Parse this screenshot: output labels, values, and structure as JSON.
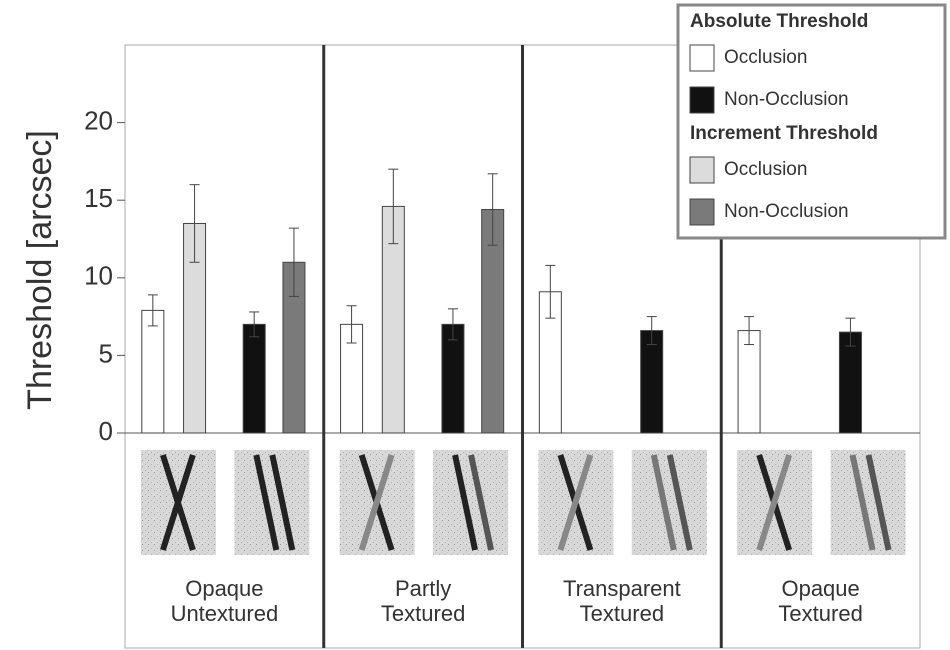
{
  "chart_data": {
    "type": "bar",
    "y_label": "Threshold [arcsec]",
    "categories": [
      [
        "Opaque",
        "Untextured"
      ],
      [
        "Partly",
        "Textured"
      ],
      [
        "Transparent",
        "Textured"
      ],
      [
        "Opaque",
        "Textured"
      ]
    ],
    "groups": [
      {
        "name": "Absolute Threshold",
        "series": [
          {
            "name": "Occlusion",
            "color": "#ffffff",
            "values": [
              7.9,
              7.0,
              9.1,
              6.6
            ],
            "errors": [
              1.0,
              1.2,
              1.7,
              0.9
            ]
          },
          {
            "name": "Non-Occlusion",
            "color": "#111111",
            "values": [
              7.0,
              7.0,
              6.6,
              6.5
            ],
            "errors": [
              0.8,
              1.0,
              0.9,
              0.9
            ]
          }
        ]
      },
      {
        "name": "Increment Threshold",
        "series": [
          {
            "name": "Occlusion",
            "color": "#dcdcdc",
            "values": [
              13.5,
              14.6,
              null,
              null
            ],
            "errors": [
              2.5,
              2.4,
              null,
              null
            ]
          },
          {
            "name": "Non-Occlusion",
            "color": "#7a7a7a",
            "values": [
              11.0,
              14.4,
              null,
              null
            ],
            "errors": [
              2.2,
              2.3,
              null,
              null
            ]
          }
        ]
      }
    ],
    "ylim": [
      0,
      25
    ],
    "yticks": [
      0,
      5,
      10,
      15,
      20
    ]
  }
}
